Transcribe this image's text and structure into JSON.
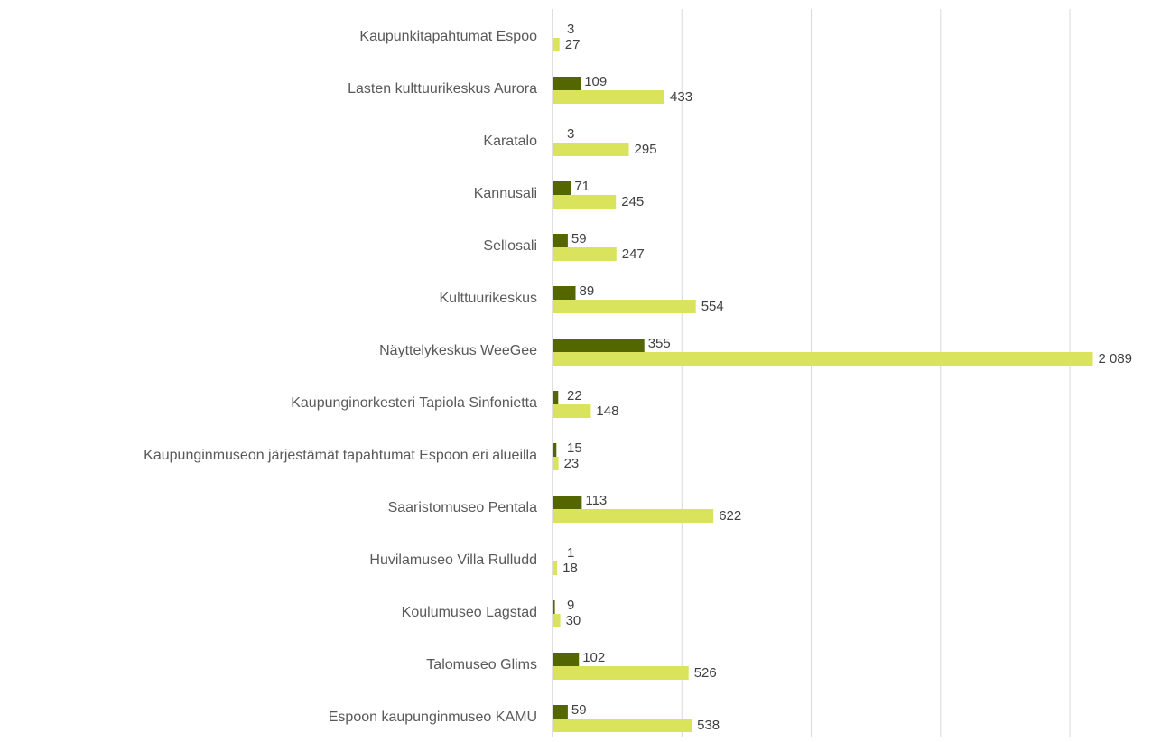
{
  "chart_data": {
    "type": "hbar",
    "categories": [
      "Kaupunkitapahtumat Espoo",
      "Lasten kulttuurikeskus Aurora",
      "Karatalo",
      "Kannusali",
      "Sellosali",
      "Kulttuurikeskus",
      "Näyttelykeskus WeeGee",
      "Kaupunginorkesteri Tapiola Sinfonietta",
      "Kaupunginmuseon järjestämät tapahtumat Espoon eri alueilla",
      "Saaristomuseo Pentala",
      "Huvilamuseo Villa Rulludd",
      "Koulumuseo Lagstad",
      "Talomuseo Glims",
      "Espoon kaupunginmuseo KAMU"
    ],
    "series": [
      {
        "color": "#536600",
        "values": [
          3,
          109,
          3,
          71,
          59,
          89,
          355,
          22,
          15,
          113,
          1,
          9,
          102,
          59
        ]
      },
      {
        "color": "#d9e35b",
        "values": [
          27,
          433,
          295,
          245,
          247,
          554,
          2089,
          148,
          23,
          622,
          18,
          30,
          526,
          538
        ],
        "value_labels": [
          "27",
          "433",
          "295",
          "245",
          "247",
          "554",
          "2 089",
          "148",
          "23",
          "622",
          "18",
          "30",
          "526",
          "538"
        ]
      }
    ],
    "xlim": [
      0,
      2000
    ],
    "xticks": [
      0,
      500,
      1000,
      1500,
      2000
    ],
    "grid": true
  }
}
